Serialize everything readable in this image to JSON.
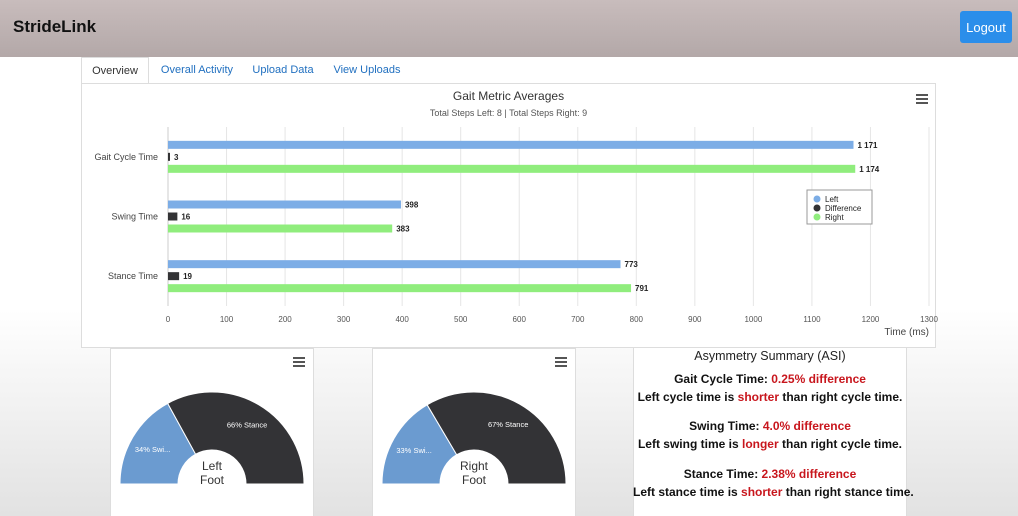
{
  "header": {
    "brand": "StrideLink",
    "logout_label": "Logout"
  },
  "tabs": [
    {
      "label": "Overview",
      "active": true
    },
    {
      "label": "Overall Activity",
      "active": false
    },
    {
      "label": "Upload Data",
      "active": false
    },
    {
      "label": "View Uploads",
      "active": false
    }
  ],
  "chart": {
    "title": "Gait Metric Averages",
    "subtitle": "Total Steps Left: 8 | Total Steps Right: 9",
    "menu_icon": "hamburger-menu-icon"
  },
  "chart_data": {
    "type": "bar",
    "orientation": "horizontal",
    "title": "Gait Metric Averages",
    "subtitle": "Total Steps Left: 8 | Total Steps Right: 9",
    "categories": [
      "Gait Cycle Time",
      "Swing Time",
      "Stance Time"
    ],
    "series": [
      {
        "name": "Left",
        "color": "#7cade6",
        "values": [
          1171,
          398,
          773
        ],
        "labels": [
          "1 171",
          "398",
          "773"
        ]
      },
      {
        "name": "Difference",
        "color": "#333335",
        "values": [
          3,
          16,
          19
        ],
        "labels": [
          "3",
          "16",
          "19"
        ]
      },
      {
        "name": "Right",
        "color": "#90ed7d",
        "values": [
          1174,
          383,
          791
        ],
        "labels": [
          "1 174",
          "383",
          "791"
        ]
      }
    ],
    "xlabel": "Time (ms)",
    "xlim": [
      0,
      1300
    ],
    "xticks": [
      0,
      100,
      200,
      300,
      400,
      500,
      600,
      700,
      800,
      900,
      1000,
      1100,
      1200,
      1300
    ],
    "grid": true,
    "legend_position": "right"
  },
  "left_foot": {
    "label_line1": "Left",
    "label_line2": "Foot",
    "menu_icon": "hamburger-menu-icon",
    "chart_data": {
      "type": "pie",
      "style": "semi-circle",
      "slices": [
        {
          "name": "Swing",
          "value": 34,
          "label": "34% Swi...",
          "color": "#6b9bd0"
        },
        {
          "name": "Stance",
          "value": 66,
          "label": "66% Stance",
          "color": "#333336"
        }
      ]
    }
  },
  "right_foot": {
    "label_line1": "Right",
    "label_line2": "Foot",
    "menu_icon": "hamburger-menu-icon",
    "chart_data": {
      "type": "pie",
      "style": "semi-circle",
      "slices": [
        {
          "name": "Swing",
          "value": 33,
          "label": "33% Swi...",
          "color": "#6b9bd0"
        },
        {
          "name": "Stance",
          "value": 67,
          "label": "67% Stance",
          "color": "#333336"
        }
      ]
    }
  },
  "asi": {
    "title": "Asymmetry Summary (ASI)",
    "gait": {
      "label": "Gait Cycle Time: ",
      "value": "0.25% difference",
      "desc_a": "Left cycle time is ",
      "desc_word": "shorter",
      "desc_b": " than right cycle time."
    },
    "swing": {
      "label": "Swing Time: ",
      "value": "4.0% difference",
      "desc_a": "Left swing time is ",
      "desc_word": "longer",
      "desc_b": " than right cycle time."
    },
    "stance": {
      "label": "Stance Time: ",
      "value": "2.38% difference",
      "desc_a": "Left stance time is ",
      "desc_word": "shorter",
      "desc_b": " than right stance time."
    }
  }
}
